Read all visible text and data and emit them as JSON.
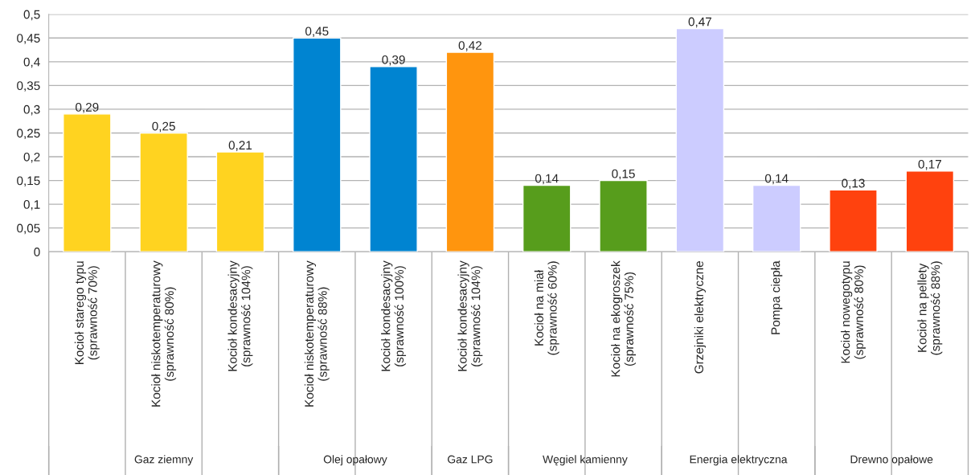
{
  "chart_data": {
    "type": "bar",
    "categories": [
      "Kocioł starego typu\n(sprawność 70%)",
      "Kocioł niskotemperaturowy\n(sprawność 80%)",
      "Kocioł kondesacyjny\n(sprawność 104%)",
      "Kocioł niskotemperaturowy\n(sprawność 88%)",
      "Kocioł kondesacyjny\n(sprawność 100%)",
      "Kocioł kondesacyjny\n(sprawność 104%)",
      "Kocioł na miał\n(sprawność 60%)",
      "Kocioł na ekogroszek\n(sprawność 75%)",
      "Grzejniki elektryczne",
      "Pompa ciepła",
      "Kocioł nowegotypu\n(sprawność 80%)",
      "Kocioł na pellety\n(sprawność 88%)"
    ],
    "values": [
      0.29,
      0.25,
      0.21,
      0.45,
      0.39,
      0.42,
      0.14,
      0.15,
      0.47,
      0.14,
      0.13,
      0.17
    ],
    "value_labels": [
      "0,29",
      "0,25",
      "0,21",
      "0,45",
      "0,39",
      "0,42",
      "0,14",
      "0,15",
      "0,47",
      "0,14",
      "0,13",
      "0,17"
    ],
    "colors": [
      "#ffd320",
      "#ffd320",
      "#ffd320",
      "#0084d1",
      "#0084d1",
      "#ff950e",
      "#579d1c",
      "#579d1c",
      "#ccccff",
      "#ccccff",
      "#ff420e",
      "#ff420e"
    ],
    "ylim": [
      0,
      0.5
    ],
    "yticks": [
      0,
      {
        "value": 0.05,
        "label": "0,05"
      },
      {
        "value": 0.1,
        "label": "0,1"
      },
      {
        "value": 0.15,
        "label": "0,15"
      },
      {
        "value": 0.2,
        "label": "0,2"
      },
      {
        "value": 0.25,
        "label": "0,25"
      },
      {
        "value": 0.3,
        "label": "0,3"
      },
      {
        "value": 0.35,
        "label": "0,35"
      },
      {
        "value": 0.4,
        "label": "0,4"
      },
      {
        "value": 0.45,
        "label": "0,45"
      },
      {
        "value": 0.5,
        "label": "0,5"
      }
    ],
    "grid": "y",
    "legend": false,
    "annotations": [
      "Gaz ziemny",
      "Olej opałowy",
      "Gaz LPG",
      "Węgiel kamienny",
      "Energia elektryczna",
      "Drewno opałowe"
    ]
  }
}
